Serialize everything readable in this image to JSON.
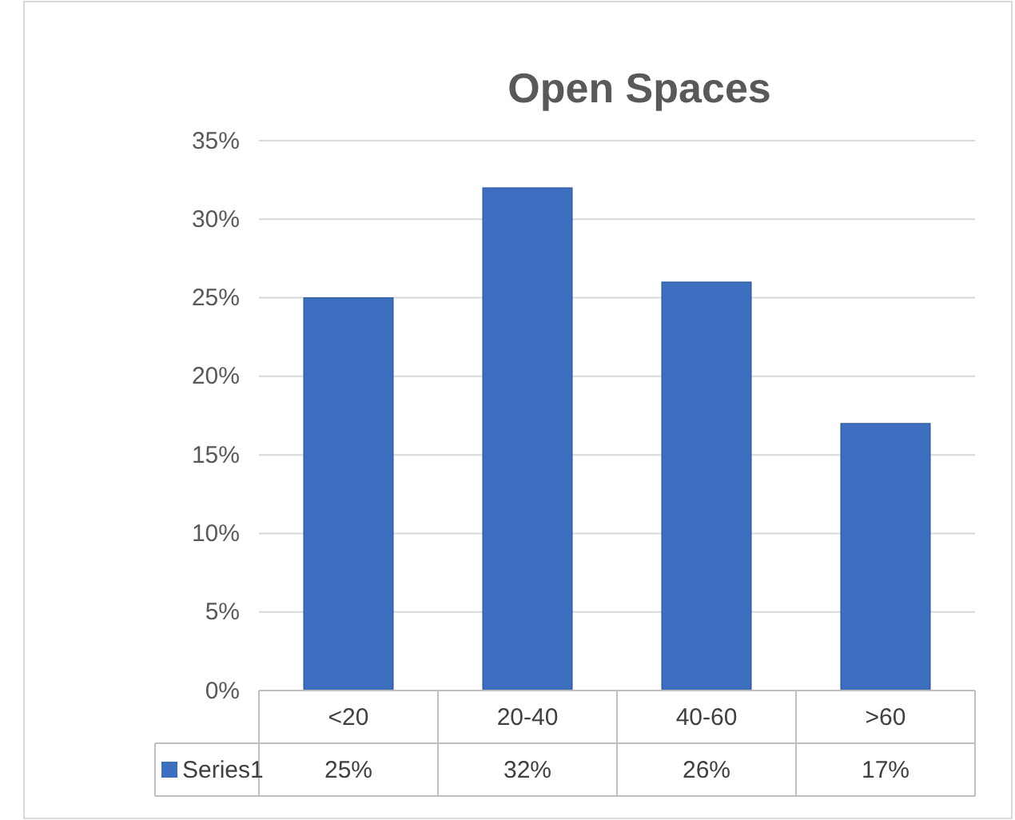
{
  "chart_data": {
    "type": "bar",
    "title": "Open Spaces",
    "categories": [
      "<20",
      "20-40",
      "40-60",
      ">60"
    ],
    "series": [
      {
        "name": "Series1",
        "color": "#3c6fc0",
        "values": [
          25,
          32,
          26,
          17
        ],
        "value_labels": [
          "25%",
          "32%",
          "26%",
          "17%"
        ]
      }
    ],
    "ylim": [
      0,
      35
    ],
    "yticks": [
      {
        "value": 0,
        "label": "0%"
      },
      {
        "value": 5,
        "label": "5%"
      },
      {
        "value": 10,
        "label": "10%"
      },
      {
        "value": 15,
        "label": "15%"
      },
      {
        "value": 20,
        "label": "20%"
      },
      {
        "value": 25,
        "label": "25%"
      },
      {
        "value": 30,
        "label": "30%"
      },
      {
        "value": 35,
        "label": "35%"
      }
    ],
    "grid": "y",
    "legend": "bottom left"
  }
}
